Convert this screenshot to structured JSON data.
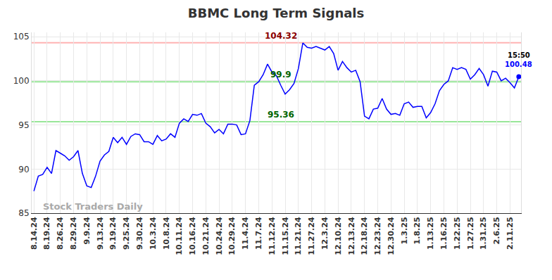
{
  "chart_data": {
    "type": "line",
    "title": "BBMC Long Term Signals",
    "watermark": "Stock Traders Daily",
    "last_time": "15:50",
    "color": "#0000ff",
    "grid": true,
    "ylim": [
      85,
      105.5
    ],
    "yticks": [
      85,
      90,
      95,
      100,
      105
    ],
    "levels": [
      {
        "value": 104.32,
        "color": "#ffb3b3"
      },
      {
        "value": 99.9,
        "color": "#99e699"
      },
      {
        "value": 95.36,
        "color": "#99e699"
      }
    ],
    "categories": [
      "8.14.24",
      null,
      null,
      "8.19.24",
      null,
      null,
      "8.26.24",
      null,
      null,
      "8.29.24",
      null,
      null,
      "9.9.24",
      null,
      null,
      "9.13.24",
      null,
      null,
      "9.19.24",
      null,
      null,
      "9.25.24",
      null,
      null,
      "9.30.24",
      null,
      null,
      "10.3.24",
      null,
      null,
      "10.8.24",
      null,
      null,
      "10.11.24",
      null,
      null,
      "10.16.24",
      null,
      null,
      "10.21.24",
      null,
      null,
      "10.24.24",
      null,
      null,
      "10.29.24",
      null,
      null,
      "11.4.24",
      null,
      null,
      "11.7.24",
      null,
      null,
      "11.12.24",
      null,
      null,
      "11.15.24",
      null,
      null,
      "11.21.24",
      null,
      null,
      "11.27.24",
      null,
      null,
      "12.3.24",
      null,
      null,
      "12.10.24",
      null,
      null,
      "12.13.24",
      null,
      null,
      "12.18.24",
      null,
      null,
      "12.23.24",
      null,
      null,
      "12.30.24",
      null,
      null,
      "1.3.25",
      null,
      null,
      "1.8.25",
      null,
      null,
      "1.13.25",
      null,
      null,
      "1.16.25",
      null,
      null,
      "1.22.25",
      null,
      null,
      "1.27.25",
      null,
      null,
      "1.31.25",
      null,
      null,
      "2.6.25",
      null,
      null,
      "2.11.25",
      null,
      null
    ],
    "values": [
      87.5,
      89.2,
      89.4,
      90.2,
      89.5,
      92.1,
      91.8,
      91.5,
      91.0,
      91.4,
      92.1,
      89.5,
      88.1,
      87.9,
      89.2,
      90.9,
      91.6,
      92.0,
      93.6,
      93.0,
      93.6,
      92.8,
      93.7,
      94.0,
      93.9,
      93.1,
      93.1,
      92.8,
      93.8,
      93.2,
      93.4,
      94.0,
      93.6,
      95.2,
      95.7,
      95.4,
      96.2,
      96.1,
      96.3,
      95.2,
      94.8,
      94.1,
      94.5,
      94.0,
      95.1,
      95.1,
      95.0,
      93.9,
      94.0,
      95.5,
      99.5,
      99.9,
      100.7,
      101.9,
      101.0,
      100.6,
      99.5,
      98.5,
      99.0,
      99.7,
      101.4,
      104.3,
      103.8,
      103.7,
      103.9,
      103.7,
      103.5,
      103.9,
      103.1,
      101.2,
      102.2,
      101.5,
      101.0,
      101.2,
      99.9,
      96.0,
      95.7,
      96.8,
      96.9,
      98.0,
      96.8,
      96.2,
      96.3,
      96.1,
      97.4,
      97.6,
      97.0,
      97.1,
      97.1,
      95.8,
      96.4,
      97.4,
      98.9,
      99.6,
      100.0,
      101.5,
      101.3,
      101.5,
      101.3,
      100.2,
      100.7,
      101.4,
      100.7,
      99.4,
      101.1,
      101.0,
      100.0,
      100.3,
      99.8,
      99.2,
      100.48
    ]
  }
}
